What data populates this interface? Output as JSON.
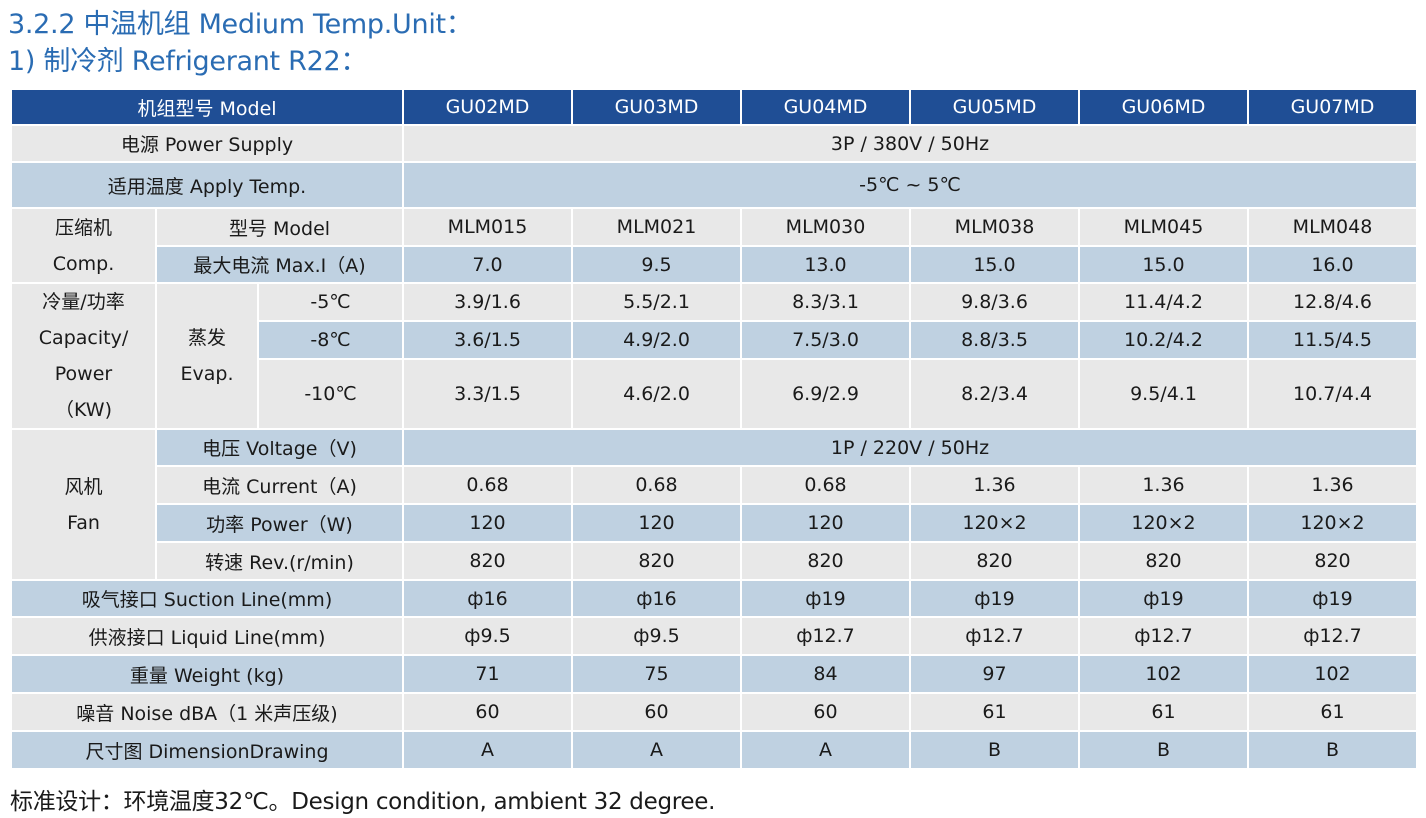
{
  "heading": {
    "line1": "3.2.2 中温机组 Medium Temp.Unit：",
    "line2": "1) 制冷剂 Refrigerant  R22："
  },
  "table": {
    "model_label": "机组型号 Model",
    "models": [
      "GU02MD",
      "GU03MD",
      "GU04MD",
      "GU05MD",
      "GU06MD",
      "GU07MD"
    ],
    "power_supply": {
      "label": "电源 Power Supply",
      "value": "3P / 380V / 50Hz"
    },
    "apply_temp": {
      "label": "适用温度 Apply Temp.",
      "value": "-5℃ ~ 5℃"
    },
    "compressor": {
      "label_cn": "压缩机",
      "label_en": "Comp.",
      "model": {
        "label": "型号 Model",
        "values": [
          "MLM015",
          "MLM021",
          "MLM030",
          "MLM038",
          "MLM045",
          "MLM048"
        ]
      },
      "max_current": {
        "label": "最大电流 Max.I（A)",
        "values": [
          "7.0",
          "9.5",
          "13.0",
          "15.0",
          "15.0",
          "16.0"
        ]
      }
    },
    "capacity": {
      "label": [
        "冷量/功率",
        "Capacity/",
        "Power",
        "（KW)"
      ],
      "evap_cn": "蒸发",
      "evap_en": "Evap.",
      "rows": [
        {
          "temp": "-5℃",
          "values": [
            "3.9/1.6",
            "5.5/2.1",
            "8.3/3.1",
            "9.8/3.6",
            "11.4/4.2",
            "12.8/4.6"
          ]
        },
        {
          "temp": "-8℃",
          "values": [
            "3.6/1.5",
            "4.9/2.0",
            "7.5/3.0",
            "8.8/3.5",
            "10.2/4.2",
            "11.5/4.5"
          ]
        },
        {
          "temp": "-10℃",
          "values": [
            "3.3/1.5",
            "4.6/2.0",
            "6.9/2.9",
            "8.2/3.4",
            "9.5/4.1",
            "10.7/4.4"
          ]
        }
      ]
    },
    "fan": {
      "label_cn": "风机",
      "label_en": "Fan",
      "voltage": {
        "label": "电压 Voltage（V)",
        "value": "1P / 220V / 50Hz"
      },
      "current": {
        "label": "电流 Current（A)",
        "values": [
          "0.68",
          "0.68",
          "0.68",
          "1.36",
          "1.36",
          "1.36"
        ]
      },
      "power": {
        "label": "功率 Power（W)",
        "values": [
          "120",
          "120",
          "120",
          "120×2",
          "120×2",
          "120×2"
        ]
      },
      "rev": {
        "label": "转速 Rev.(r/min)",
        "values": [
          "820",
          "820",
          "820",
          "820",
          "820",
          "820"
        ]
      }
    },
    "suction": {
      "label": "吸气接口 Suction Line(mm)",
      "values": [
        "ф16",
        "ф16",
        "ф19",
        "ф19",
        "ф19",
        "ф19"
      ]
    },
    "liquid": {
      "label": "供液接口 Liquid Line(mm)",
      "values": [
        "ф9.5",
        "ф9.5",
        "ф12.7",
        "ф12.7",
        "ф12.7",
        "ф12.7"
      ]
    },
    "weight": {
      "label": "重量  Weight (kg)",
      "values": [
        "71",
        "75",
        "84",
        "97",
        "102",
        "102"
      ]
    },
    "noise": {
      "label": "噪音 Noise dBA（1 米声压级)",
      "values": [
        "60",
        "60",
        "60",
        "61",
        "61",
        "61"
      ]
    },
    "drawing": {
      "label": "尺寸图 DimensionDrawing",
      "values": [
        "A",
        "A",
        "A",
        "B",
        "B",
        "B"
      ]
    }
  },
  "footer": "标准设计：环境温度32℃。Design condition, ambient 32 degree.",
  "colors": {
    "header_bg": "#1f4e95",
    "heading_text": "#2a6cb3",
    "row_gray": "#e8e8e8",
    "row_blue": "#bfd1e1"
  }
}
